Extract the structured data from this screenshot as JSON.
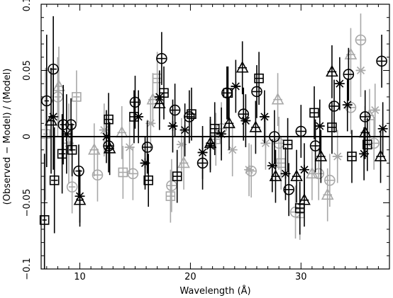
{
  "chart_data": {
    "type": "scatter",
    "xlabel": "Wavelength (Å)",
    "ylabel": "(Observed − Model) / (Model)",
    "xlim": [
      6.5,
      38
    ],
    "ylim": [
      -0.1,
      0.1
    ],
    "x_ticks": [
      10,
      20,
      30
    ],
    "y_ticks": [
      -0.1,
      -0.05,
      0,
      0.05,
      0.1
    ],
    "x_tick_labels": [
      "10",
      "20",
      "30"
    ],
    "y_tick_labels": [
      "−0.1",
      "−0.05",
      "0",
      "0.05",
      "0.1"
    ],
    "reference_line": 0,
    "grid": false,
    "legend": "none",
    "series": [
      {
        "marker": "circle",
        "color": "#000000",
        "points": [
          {
            "x": 7.0,
            "y": 0.027,
            "xerr": 0.2,
            "yerr": 0.05
          },
          {
            "x": 7.6,
            "y": 0.051,
            "xerr": 0.3,
            "yerr": 0.04
          },
          {
            "x": 8.5,
            "y": 0.009,
            "xerr": 0.3,
            "yerr": 0.03
          },
          {
            "x": 9.2,
            "y": 0.009,
            "xerr": 0.3,
            "yerr": 0.02
          },
          {
            "x": 9.9,
            "y": -0.026,
            "xerr": 0.3,
            "yerr": 0.02
          },
          {
            "x": 12.6,
            "y": -0.007,
            "xerr": 0.4,
            "yerr": 0.02
          },
          {
            "x": 15.0,
            "y": 0.026,
            "xerr": 0.4,
            "yerr": 0.02
          },
          {
            "x": 16.1,
            "y": -0.008,
            "xerr": 0.4,
            "yerr": 0.02
          },
          {
            "x": 17.4,
            "y": 0.059,
            "xerr": 0.4,
            "yerr": 0.02
          },
          {
            "x": 18.6,
            "y": 0.02,
            "xerr": 0.4,
            "yerr": 0.02
          },
          {
            "x": 19.9,
            "y": 0.015,
            "xerr": 0.4,
            "yerr": 0.02
          },
          {
            "x": 21.1,
            "y": -0.02,
            "xerr": 0.4,
            "yerr": 0.02
          },
          {
            "x": 23.3,
            "y": 0.033,
            "xerr": 0.4,
            "yerr": 0.02
          },
          {
            "x": 24.8,
            "y": 0.017,
            "xerr": 0.4,
            "yerr": 0.02
          },
          {
            "x": 26.0,
            "y": 0.034,
            "xerr": 0.4,
            "yerr": 0.02
          },
          {
            "x": 27.6,
            "y": 0.0,
            "xerr": 0.4,
            "yerr": 0.02
          },
          {
            "x": 28.9,
            "y": -0.04,
            "xerr": 0.4,
            "yerr": 0.02
          },
          {
            "x": 30.0,
            "y": 0.004,
            "xerr": 0.4,
            "yerr": 0.02
          },
          {
            "x": 31.3,
            "y": -0.007,
            "xerr": 0.4,
            "yerr": 0.02
          },
          {
            "x": 33.0,
            "y": 0.023,
            "xerr": 0.4,
            "yerr": 0.02
          },
          {
            "x": 34.3,
            "y": 0.047,
            "xerr": 0.4,
            "yerr": 0.02
          },
          {
            "x": 35.8,
            "y": 0.015,
            "xerr": 0.4,
            "yerr": 0.02
          },
          {
            "x": 37.3,
            "y": 0.057,
            "xerr": 0.4,
            "yerr": 0.02
          }
        ]
      },
      {
        "marker": "square",
        "color": "#000000",
        "points": [
          {
            "x": 6.8,
            "y": -0.063,
            "xerr": 0.2,
            "yerr": 0.05
          },
          {
            "x": 7.7,
            "y": -0.033,
            "xerr": 0.3,
            "yerr": 0.04
          },
          {
            "x": 8.4,
            "y": -0.013,
            "xerr": 0.3,
            "yerr": 0.03
          },
          {
            "x": 9.3,
            "y": -0.01,
            "xerr": 0.3,
            "yerr": 0.02
          },
          {
            "x": 12.6,
            "y": 0.013,
            "xerr": 0.4,
            "yerr": 0.02
          },
          {
            "x": 14.9,
            "y": 0.015,
            "xerr": 0.4,
            "yerr": 0.02
          },
          {
            "x": 16.2,
            "y": -0.033,
            "xerr": 0.4,
            "yerr": 0.02
          },
          {
            "x": 17.6,
            "y": 0.033,
            "xerr": 0.4,
            "yerr": 0.02
          },
          {
            "x": 18.8,
            "y": -0.03,
            "xerr": 0.4,
            "yerr": 0.02
          },
          {
            "x": 20.1,
            "y": 0.017,
            "xerr": 0.4,
            "yerr": 0.02
          },
          {
            "x": 22.2,
            "y": 0.006,
            "xerr": 0.4,
            "yerr": 0.02
          },
          {
            "x": 23.4,
            "y": 0.033,
            "xerr": 0.4,
            "yerr": 0.02
          },
          {
            "x": 26.2,
            "y": 0.044,
            "xerr": 0.4,
            "yerr": 0.02
          },
          {
            "x": 28.8,
            "y": -0.006,
            "xerr": 0.4,
            "yerr": 0.02
          },
          {
            "x": 29.9,
            "y": -0.054,
            "xerr": 0.4,
            "yerr": 0.02
          },
          {
            "x": 31.2,
            "y": 0.018,
            "xerr": 0.4,
            "yerr": 0.02
          },
          {
            "x": 32.8,
            "y": 0.007,
            "xerr": 0.4,
            "yerr": 0.02
          },
          {
            "x": 34.6,
            "y": -0.015,
            "xerr": 0.4,
            "yerr": 0.02
          },
          {
            "x": 36.0,
            "y": -0.006,
            "xerr": 0.4,
            "yerr": 0.02
          }
        ]
      },
      {
        "marker": "triangle",
        "color": "#000000",
        "points": [
          {
            "x": 7.4,
            "y": 0.012,
            "xerr": 0.3,
            "yerr": 0.04
          },
          {
            "x": 10.0,
            "y": -0.048,
            "xerr": 0.3,
            "yerr": 0.02
          },
          {
            "x": 12.7,
            "y": -0.009,
            "xerr": 0.4,
            "yerr": 0.02
          },
          {
            "x": 17.2,
            "y": 0.025,
            "xerr": 0.4,
            "yerr": 0.02
          },
          {
            "x": 21.8,
            "y": -0.005,
            "xerr": 0.4,
            "yerr": 0.02
          },
          {
            "x": 23.5,
            "y": 0.01,
            "xerr": 0.4,
            "yerr": 0.02
          },
          {
            "x": 24.7,
            "y": 0.052,
            "xerr": 0.4,
            "yerr": 0.02
          },
          {
            "x": 25.9,
            "y": 0.007,
            "xerr": 0.4,
            "yerr": 0.02
          },
          {
            "x": 27.7,
            "y": -0.03,
            "xerr": 0.4,
            "yerr": 0.02
          },
          {
            "x": 29.6,
            "y": -0.03,
            "xerr": 0.4,
            "yerr": 0.02
          },
          {
            "x": 30.3,
            "y": -0.048,
            "xerr": 0.4,
            "yerr": 0.02
          },
          {
            "x": 31.8,
            "y": -0.015,
            "xerr": 0.4,
            "yerr": 0.02
          },
          {
            "x": 32.8,
            "y": 0.049,
            "xerr": 0.4,
            "yerr": 0.02
          },
          {
            "x": 35.8,
            "y": 0.003,
            "xerr": 0.4,
            "yerr": 0.02
          },
          {
            "x": 37.2,
            "y": -0.015,
            "xerr": 0.4,
            "yerr": 0.02
          }
        ]
      },
      {
        "marker": "asterisk",
        "color": "#000000",
        "points": [
          {
            "x": 7.6,
            "y": 0.015,
            "xerr": 0.3,
            "yerr": 0.04
          },
          {
            "x": 8.8,
            "y": 0.002,
            "xerr": 0.3,
            "yerr": 0.03
          },
          {
            "x": 10.0,
            "y": -0.045,
            "xerr": 0.3,
            "yerr": 0.02
          },
          {
            "x": 12.4,
            "y": 0.0,
            "xerr": 0.4,
            "yerr": 0.02
          },
          {
            "x": 15.3,
            "y": 0.015,
            "xerr": 0.4,
            "yerr": 0.02
          },
          {
            "x": 15.9,
            "y": -0.02,
            "xerr": 0.4,
            "yerr": 0.02
          },
          {
            "x": 17.2,
            "y": 0.03,
            "xerr": 0.4,
            "yerr": 0.02
          },
          {
            "x": 18.4,
            "y": 0.008,
            "xerr": 0.4,
            "yerr": 0.02
          },
          {
            "x": 19.5,
            "y": 0.005,
            "xerr": 0.4,
            "yerr": 0.02
          },
          {
            "x": 21.1,
            "y": -0.012,
            "xerr": 0.4,
            "yerr": 0.02
          },
          {
            "x": 21.8,
            "y": -0.007,
            "xerr": 0.4,
            "yerr": 0.02
          },
          {
            "x": 22.8,
            "y": 0.002,
            "xerr": 0.4,
            "yerr": 0.02
          },
          {
            "x": 24.1,
            "y": 0.038,
            "xerr": 0.4,
            "yerr": 0.02
          },
          {
            "x": 25.0,
            "y": 0.012,
            "xerr": 0.4,
            "yerr": 0.02
          },
          {
            "x": 26.7,
            "y": 0.015,
            "xerr": 0.4,
            "yerr": 0.02
          },
          {
            "x": 27.4,
            "y": -0.022,
            "xerr": 0.4,
            "yerr": 0.02
          },
          {
            "x": 28.6,
            "y": -0.028,
            "xerr": 0.4,
            "yerr": 0.02
          },
          {
            "x": 30.3,
            "y": -0.025,
            "xerr": 0.4,
            "yerr": 0.02
          },
          {
            "x": 31.7,
            "y": 0.008,
            "xerr": 0.4,
            "yerr": 0.02
          },
          {
            "x": 33.5,
            "y": 0.04,
            "xerr": 0.4,
            "yerr": 0.02
          },
          {
            "x": 34.2,
            "y": 0.024,
            "xerr": 0.4,
            "yerr": 0.02
          },
          {
            "x": 35.7,
            "y": -0.013,
            "xerr": 0.4,
            "yerr": 0.02
          },
          {
            "x": 37.4,
            "y": 0.006,
            "xerr": 0.4,
            "yerr": 0.02
          }
        ]
      },
      {
        "marker": "circle",
        "color": "#a8a8a8",
        "points": [
          {
            "x": 8.0,
            "y": 0.03,
            "xerr": 0.3,
            "yerr": 0.03
          },
          {
            "x": 9.3,
            "y": -0.038,
            "xerr": 0.3,
            "yerr": 0.02
          },
          {
            "x": 11.6,
            "y": -0.029,
            "xerr": 0.4,
            "yerr": 0.02
          },
          {
            "x": 14.8,
            "y": -0.028,
            "xerr": 0.4,
            "yerr": 0.02
          },
          {
            "x": 18.3,
            "y": -0.037,
            "xerr": 0.4,
            "yerr": 0.02
          },
          {
            "x": 22.8,
            "y": 0.006,
            "xerr": 0.4,
            "yerr": 0.02
          },
          {
            "x": 25.5,
            "y": -0.026,
            "xerr": 0.4,
            "yerr": 0.02
          },
          {
            "x": 28.0,
            "y": -0.005,
            "xerr": 0.4,
            "yerr": 0.02
          },
          {
            "x": 29.5,
            "y": -0.057,
            "xerr": 0.4,
            "yerr": 0.02
          },
          {
            "x": 31.6,
            "y": -0.028,
            "xerr": 0.4,
            "yerr": 0.02
          },
          {
            "x": 32.6,
            "y": -0.033,
            "xerr": 0.4,
            "yerr": 0.02
          },
          {
            "x": 34.5,
            "y": 0.022,
            "xerr": 0.4,
            "yerr": 0.02
          },
          {
            "x": 36.6,
            "y": -0.005,
            "xerr": 0.4,
            "yerr": 0.02
          },
          {
            "x": 35.4,
            "y": 0.073,
            "xerr": 0.4,
            "yerr": 0.02
          }
        ]
      },
      {
        "marker": "square",
        "color": "#a8a8a8",
        "points": [
          {
            "x": 6.9,
            "y": 0.002,
            "xerr": 0.2,
            "yerr": 0.05
          },
          {
            "x": 9.7,
            "y": 0.03,
            "xerr": 0.3,
            "yerr": 0.02
          },
          {
            "x": 13.9,
            "y": -0.027,
            "xerr": 0.4,
            "yerr": 0.02
          },
          {
            "x": 17.0,
            "y": 0.044,
            "xerr": 0.4,
            "yerr": 0.02
          },
          {
            "x": 18.2,
            "y": -0.045,
            "xerr": 0.4,
            "yerr": 0.02
          },
          {
            "x": 22.3,
            "y": -0.002,
            "xerr": 0.4,
            "yerr": 0.02
          },
          {
            "x": 28.2,
            "y": -0.02,
            "xerr": 0.4,
            "yerr": 0.02
          },
          {
            "x": 29.9,
            "y": -0.058,
            "xerr": 0.4,
            "yerr": 0.02
          }
        ]
      },
      {
        "marker": "triangle",
        "color": "#a8a8a8",
        "points": [
          {
            "x": 8.1,
            "y": 0.038,
            "xerr": 0.3,
            "yerr": 0.03
          },
          {
            "x": 11.3,
            "y": -0.01,
            "xerr": 0.4,
            "yerr": 0.02
          },
          {
            "x": 13.8,
            "y": 0.003,
            "xerr": 0.4,
            "yerr": 0.02
          },
          {
            "x": 16.6,
            "y": 0.028,
            "xerr": 0.4,
            "yerr": 0.02
          },
          {
            "x": 19.4,
            "y": -0.02,
            "xerr": 0.4,
            "yerr": 0.02
          },
          {
            "x": 27.9,
            "y": 0.028,
            "xerr": 0.4,
            "yerr": 0.02
          },
          {
            "x": 31.0,
            "y": -0.028,
            "xerr": 0.4,
            "yerr": 0.02
          },
          {
            "x": 32.4,
            "y": -0.044,
            "xerr": 0.4,
            "yerr": 0.02
          },
          {
            "x": 34.5,
            "y": 0.062,
            "xerr": 0.4,
            "yerr": 0.02
          },
          {
            "x": 36.2,
            "y": 0.016,
            "xerr": 0.4,
            "yerr": 0.02
          }
        ]
      },
      {
        "marker": "asterisk",
        "color": "#a8a8a8",
        "points": [
          {
            "x": 9.0,
            "y": -0.005,
            "xerr": 0.3,
            "yerr": 0.03
          },
          {
            "x": 12.2,
            "y": 0.005,
            "xerr": 0.4,
            "yerr": 0.02
          },
          {
            "x": 14.5,
            "y": -0.008,
            "xerr": 0.4,
            "yerr": 0.02
          },
          {
            "x": 16.4,
            "y": 0.01,
            "xerr": 0.4,
            "yerr": 0.02
          },
          {
            "x": 19.2,
            "y": -0.006,
            "xerr": 0.4,
            "yerr": 0.02
          },
          {
            "x": 23.8,
            "y": -0.01,
            "xerr": 0.4,
            "yerr": 0.02
          },
          {
            "x": 25.3,
            "y": -0.025,
            "xerr": 0.4,
            "yerr": 0.02
          },
          {
            "x": 26.8,
            "y": -0.005,
            "xerr": 0.4,
            "yerr": 0.02
          },
          {
            "x": 33.3,
            "y": -0.015,
            "xerr": 0.4,
            "yerr": 0.02
          },
          {
            "x": 35.4,
            "y": 0.05,
            "xerr": 0.4,
            "yerr": 0.02
          },
          {
            "x": 36.7,
            "y": 0.02,
            "xerr": 0.4,
            "yerr": 0.02
          }
        ]
      }
    ]
  }
}
